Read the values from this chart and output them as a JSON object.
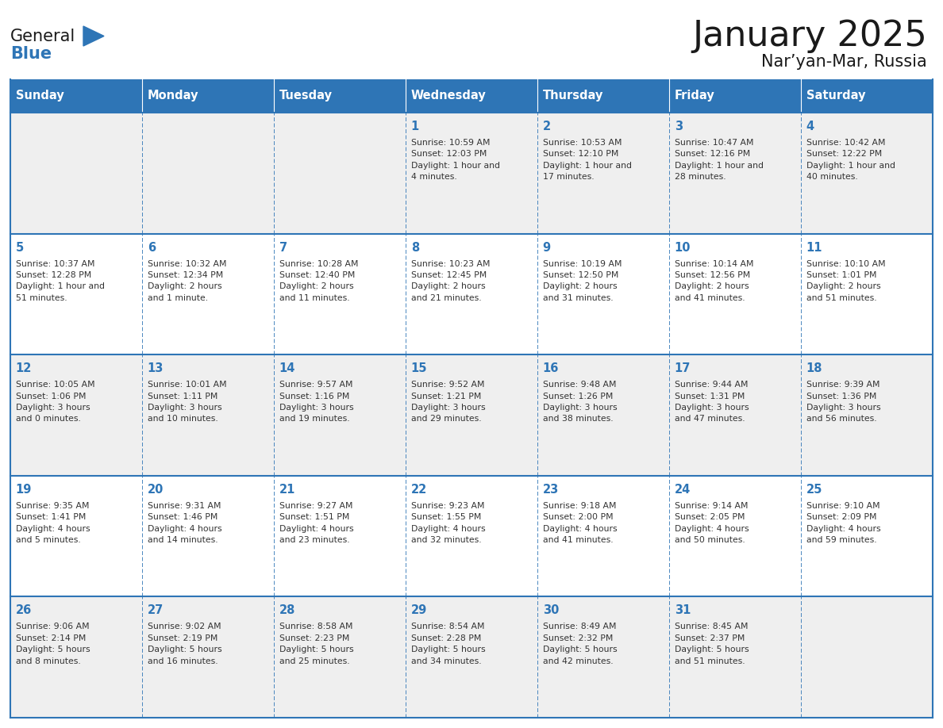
{
  "title": "January 2025",
  "subtitle": "Nar’yan-Mar, Russia",
  "header_color": "#2E75B6",
  "header_text_color": "#FFFFFF",
  "row_bg_colors": [
    "#EFEFEF",
    "#FFFFFF",
    "#EFEFEF",
    "#FFFFFF",
    "#EFEFEF"
  ],
  "cell_border_color": "#2E75B6",
  "day_number_color": "#2E75B6",
  "text_color": "#333333",
  "days_of_week": [
    "Sunday",
    "Monday",
    "Tuesday",
    "Wednesday",
    "Thursday",
    "Friday",
    "Saturday"
  ],
  "weeks": [
    [
      {
        "day": "",
        "info": ""
      },
      {
        "day": "",
        "info": ""
      },
      {
        "day": "",
        "info": ""
      },
      {
        "day": "1",
        "info": "Sunrise: 10:59 AM\nSunset: 12:03 PM\nDaylight: 1 hour and\n4 minutes."
      },
      {
        "day": "2",
        "info": "Sunrise: 10:53 AM\nSunset: 12:10 PM\nDaylight: 1 hour and\n17 minutes."
      },
      {
        "day": "3",
        "info": "Sunrise: 10:47 AM\nSunset: 12:16 PM\nDaylight: 1 hour and\n28 minutes."
      },
      {
        "day": "4",
        "info": "Sunrise: 10:42 AM\nSunset: 12:22 PM\nDaylight: 1 hour and\n40 minutes."
      }
    ],
    [
      {
        "day": "5",
        "info": "Sunrise: 10:37 AM\nSunset: 12:28 PM\nDaylight: 1 hour and\n51 minutes."
      },
      {
        "day": "6",
        "info": "Sunrise: 10:32 AM\nSunset: 12:34 PM\nDaylight: 2 hours\nand 1 minute."
      },
      {
        "day": "7",
        "info": "Sunrise: 10:28 AM\nSunset: 12:40 PM\nDaylight: 2 hours\nand 11 minutes."
      },
      {
        "day": "8",
        "info": "Sunrise: 10:23 AM\nSunset: 12:45 PM\nDaylight: 2 hours\nand 21 minutes."
      },
      {
        "day": "9",
        "info": "Sunrise: 10:19 AM\nSunset: 12:50 PM\nDaylight: 2 hours\nand 31 minutes."
      },
      {
        "day": "10",
        "info": "Sunrise: 10:14 AM\nSunset: 12:56 PM\nDaylight: 2 hours\nand 41 minutes."
      },
      {
        "day": "11",
        "info": "Sunrise: 10:10 AM\nSunset: 1:01 PM\nDaylight: 2 hours\nand 51 minutes."
      }
    ],
    [
      {
        "day": "12",
        "info": "Sunrise: 10:05 AM\nSunset: 1:06 PM\nDaylight: 3 hours\nand 0 minutes."
      },
      {
        "day": "13",
        "info": "Sunrise: 10:01 AM\nSunset: 1:11 PM\nDaylight: 3 hours\nand 10 minutes."
      },
      {
        "day": "14",
        "info": "Sunrise: 9:57 AM\nSunset: 1:16 PM\nDaylight: 3 hours\nand 19 minutes."
      },
      {
        "day": "15",
        "info": "Sunrise: 9:52 AM\nSunset: 1:21 PM\nDaylight: 3 hours\nand 29 minutes."
      },
      {
        "day": "16",
        "info": "Sunrise: 9:48 AM\nSunset: 1:26 PM\nDaylight: 3 hours\nand 38 minutes."
      },
      {
        "day": "17",
        "info": "Sunrise: 9:44 AM\nSunset: 1:31 PM\nDaylight: 3 hours\nand 47 minutes."
      },
      {
        "day": "18",
        "info": "Sunrise: 9:39 AM\nSunset: 1:36 PM\nDaylight: 3 hours\nand 56 minutes."
      }
    ],
    [
      {
        "day": "19",
        "info": "Sunrise: 9:35 AM\nSunset: 1:41 PM\nDaylight: 4 hours\nand 5 minutes."
      },
      {
        "day": "20",
        "info": "Sunrise: 9:31 AM\nSunset: 1:46 PM\nDaylight: 4 hours\nand 14 minutes."
      },
      {
        "day": "21",
        "info": "Sunrise: 9:27 AM\nSunset: 1:51 PM\nDaylight: 4 hours\nand 23 minutes."
      },
      {
        "day": "22",
        "info": "Sunrise: 9:23 AM\nSunset: 1:55 PM\nDaylight: 4 hours\nand 32 minutes."
      },
      {
        "day": "23",
        "info": "Sunrise: 9:18 AM\nSunset: 2:00 PM\nDaylight: 4 hours\nand 41 minutes."
      },
      {
        "day": "24",
        "info": "Sunrise: 9:14 AM\nSunset: 2:05 PM\nDaylight: 4 hours\nand 50 minutes."
      },
      {
        "day": "25",
        "info": "Sunrise: 9:10 AM\nSunset: 2:09 PM\nDaylight: 4 hours\nand 59 minutes."
      }
    ],
    [
      {
        "day": "26",
        "info": "Sunrise: 9:06 AM\nSunset: 2:14 PM\nDaylight: 5 hours\nand 8 minutes."
      },
      {
        "day": "27",
        "info": "Sunrise: 9:02 AM\nSunset: 2:19 PM\nDaylight: 5 hours\nand 16 minutes."
      },
      {
        "day": "28",
        "info": "Sunrise: 8:58 AM\nSunset: 2:23 PM\nDaylight: 5 hours\nand 25 minutes."
      },
      {
        "day": "29",
        "info": "Sunrise: 8:54 AM\nSunset: 2:28 PM\nDaylight: 5 hours\nand 34 minutes."
      },
      {
        "day": "30",
        "info": "Sunrise: 8:49 AM\nSunset: 2:32 PM\nDaylight: 5 hours\nand 42 minutes."
      },
      {
        "day": "31",
        "info": "Sunrise: 8:45 AM\nSunset: 2:37 PM\nDaylight: 5 hours\nand 51 minutes."
      },
      {
        "day": "",
        "info": ""
      }
    ]
  ]
}
